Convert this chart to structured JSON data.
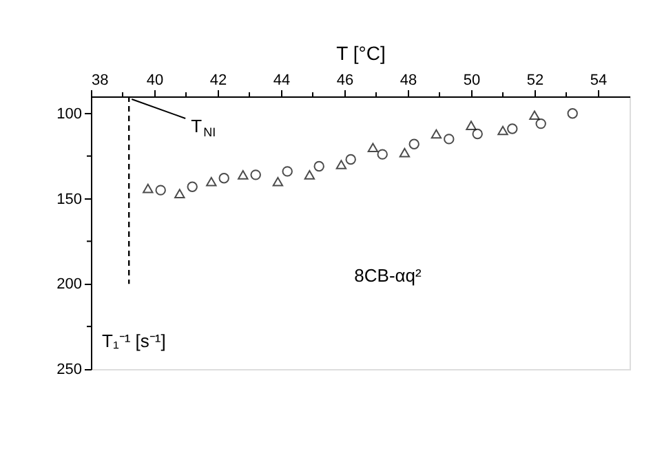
{
  "chart_data": {
    "type": "scatter",
    "xlabel": "T [°C]",
    "ylabel": "T₁⁻¹ [s⁻¹]",
    "xlim": [
      38,
      55
    ],
    "ylim": [
      250,
      90
    ],
    "xticks": [
      38,
      {
        "value": 39,
        "label": null
      },
      40,
      {
        "value": 41,
        "label": null
      },
      42,
      {
        "value": 43,
        "label": null
      },
      44,
      {
        "value": 45,
        "label": null
      },
      46,
      {
        "value": 47,
        "label": null
      },
      48,
      {
        "value": 49,
        "label": null
      },
      50,
      {
        "value": 51,
        "label": null
      },
      52,
      {
        "value": 53,
        "label": null
      },
      54
    ],
    "yticks": [
      100,
      {
        "value": 125,
        "label": null
      },
      150,
      {
        "value": 175,
        "label": null
      },
      200,
      {
        "value": 225,
        "label": null
      },
      250
    ],
    "grid": false,
    "series": [
      {
        "color": "#000000",
        "marker": "triangle",
        "x": [
          39.8,
          40.8,
          41.8,
          42.8,
          43.9,
          44.9,
          45.9,
          46.9,
          47.9,
          48.9,
          50.0,
          51.0,
          52.0
        ],
        "values": [
          144,
          147,
          140,
          136,
          140,
          136,
          130,
          120,
          123,
          112,
          107,
          110,
          101
        ]
      },
      {
        "color": "#000000",
        "marker": "circle",
        "x": [
          40.2,
          41.2,
          42.2,
          43.2,
          44.2,
          45.2,
          46.2,
          47.2,
          48.2,
          49.3,
          50.2,
          51.3,
          52.2,
          53.2
        ],
        "values": [
          145,
          143,
          138,
          136,
          134,
          131,
          127,
          124,
          118,
          115,
          112,
          109,
          106,
          100
        ]
      },
      {
        "type": "line",
        "line_style": "dashed",
        "color": "#000000",
        "marker": "none",
        "x": [
          39.2,
          39.2
        ],
        "values": [
          90,
          200
        ]
      }
    ],
    "annotations": [
      {
        "text": "T$_{NI}$",
        "x": 39.2,
        "y": 90
      },
      "8CB-αq²"
    ]
  }
}
